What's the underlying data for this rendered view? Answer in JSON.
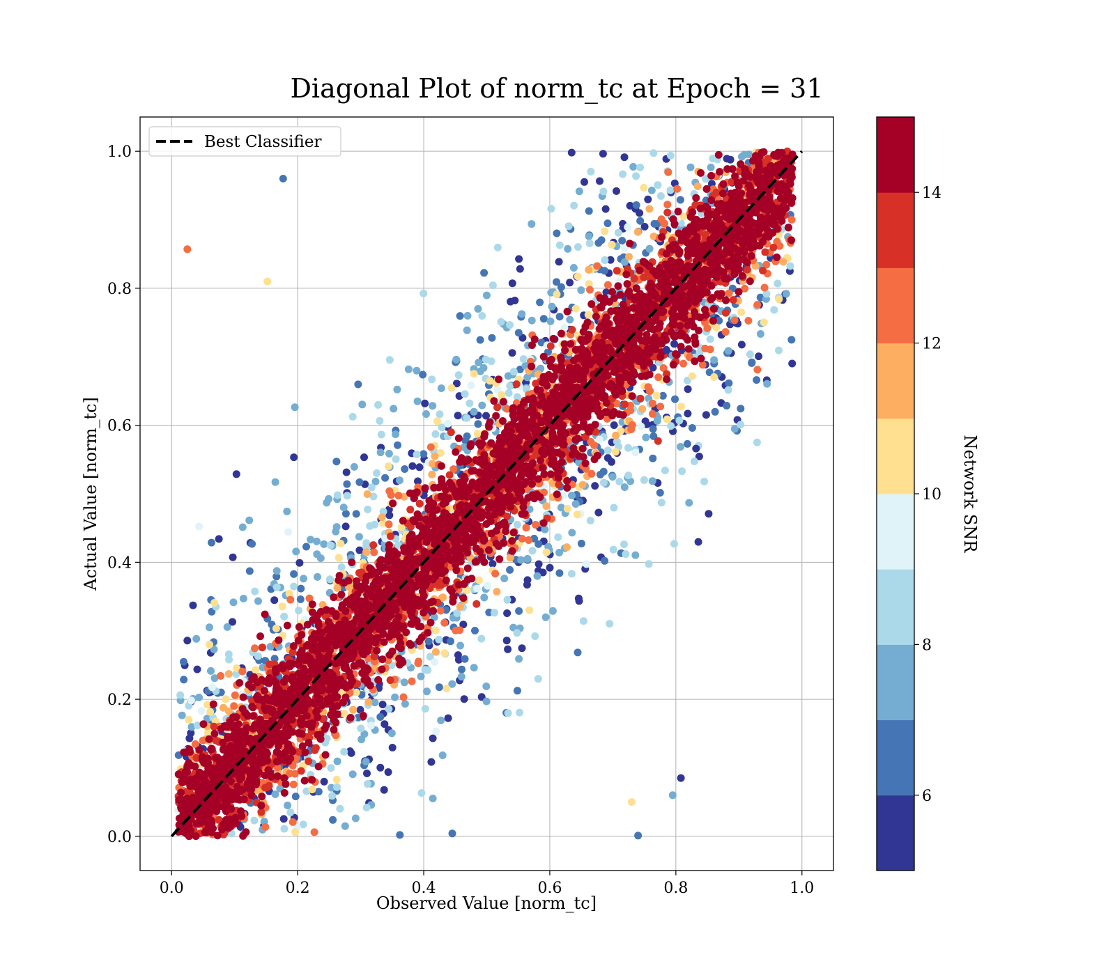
{
  "chart_data": {
    "type": "scatter",
    "title": "Diagonal Plot of norm_tc at Epoch = 31",
    "xlabel": "Observed Value [norm_tc]",
    "ylabel": "Actual Value [norm_tc]",
    "xlim": [
      -0.05,
      1.05
    ],
    "ylim": [
      -0.05,
      1.05
    ],
    "x_ticks": [
      "0.0",
      "0.2",
      "0.4",
      "0.6",
      "0.8",
      "1.0"
    ],
    "y_ticks": [
      "0.0",
      "0.2",
      "0.4",
      "0.6",
      "0.8",
      "1.0"
    ],
    "grid": true,
    "legend": {
      "position": "top-left",
      "entries": [
        {
          "label": "Best Classifier",
          "style": "black dashed line"
        }
      ]
    },
    "reference_line": {
      "label": "Best Classifier",
      "from": [
        0,
        0
      ],
      "to": [
        1,
        1
      ],
      "color": "#000000",
      "dash": true
    },
    "colorbar": {
      "label": "Network SNR",
      "range": [
        5,
        15
      ],
      "ticks": [
        "6",
        "8",
        "10",
        "12",
        "14"
      ],
      "tick_values": [
        6,
        8,
        10,
        12,
        14
      ],
      "colors": [
        "#313695",
        "#4575b4",
        "#74add1",
        "#abd9e9",
        "#e0f3f8",
        "#fee090",
        "#fdae61",
        "#f46d43",
        "#d73027",
        "#a50026"
      ]
    },
    "points_description_values": {
      "n_points_approx": 12000,
      "distribution": "dense band along y = x, high SNR near diagonal, low SNR scattered off-diagonal"
    },
    "sample_points": [
      {
        "x": 0.025,
        "y": 0.857,
        "snr": 12.5
      },
      {
        "x": 0.177,
        "y": 0.96,
        "snr": 6.0
      },
      {
        "x": 0.152,
        "y": 0.81,
        "snr": 10.5
      },
      {
        "x": 0.075,
        "y": 0.434,
        "snr": 5.2
      },
      {
        "x": 0.06,
        "y": 0.305,
        "snr": 7.0
      },
      {
        "x": 0.06,
        "y": 0.28,
        "snr": 10.5
      },
      {
        "x": 0.148,
        "y": 0.324,
        "snr": 14.8
      },
      {
        "x": 0.832,
        "y": 0.566,
        "snr": 5.2
      },
      {
        "x": 0.808,
        "y": 0.085,
        "snr": 5.2
      },
      {
        "x": 0.74,
        "y": 0.001,
        "snr": 6.0
      },
      {
        "x": 0.795,
        "y": 0.06,
        "snr": 7.5
      },
      {
        "x": 0.73,
        "y": 0.05,
        "snr": 10.5
      },
      {
        "x": 0.785,
        "y": 0.71,
        "snr": 5.2
      }
    ]
  }
}
